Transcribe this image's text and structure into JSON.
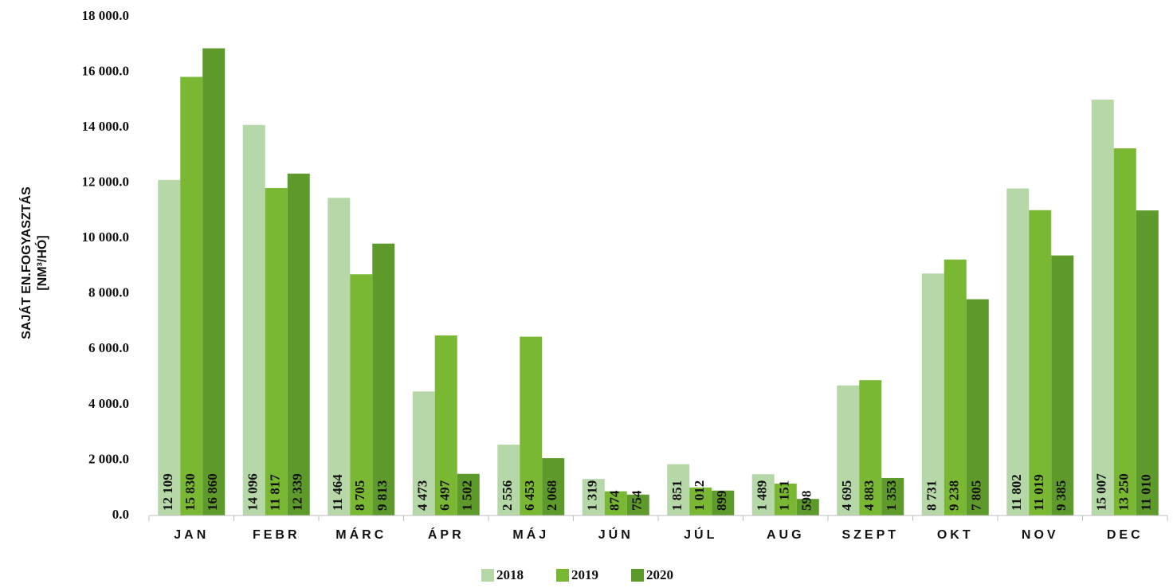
{
  "chart_data": {
    "type": "bar",
    "y_label": [
      "SAJÁT EN.FOGYASZTÁS",
      "[NM³/HÓ]"
    ],
    "categories": [
      "JAN",
      "FEBR",
      "MÁRC",
      "ÁPR",
      "MÁJ",
      "JÚN",
      "JÚL",
      "AUG",
      "SZEPT",
      "OKT",
      "NOV",
      "DEC"
    ],
    "series": [
      {
        "name": "2018",
        "color": "#b6d7a8",
        "values": [
          12109,
          14096,
          11464,
          4473,
          2556,
          1319,
          1851,
          1489,
          4695,
          8731,
          11802,
          15007
        ],
        "value_labels": [
          "12 109",
          "14 096",
          "11 464",
          "4 473",
          "2 556",
          "1 319",
          "1 851",
          "1 489",
          "4 695",
          "8 731",
          "11 802",
          "15 007"
        ]
      },
      {
        "name": "2019",
        "color": "#7ab834",
        "values": [
          15830,
          11817,
          8705,
          6497,
          6453,
          874,
          1012,
          1151,
          4883,
          9238,
          11019,
          13250
        ],
        "value_labels": [
          "15 830",
          "11 817",
          "8 705",
          "6 497",
          "6 453",
          "874",
          "1 012",
          "1 151",
          "4 883",
          "9 238",
          "11 019",
          "13 250"
        ]
      },
      {
        "name": "2020",
        "color": "#5e9a2b",
        "values": [
          16860,
          12339,
          9813,
          1502,
          2068,
          754,
          899,
          598,
          1353,
          7805,
          9385,
          11010
        ],
        "value_labels": [
          "16 860",
          "12 339",
          "9 813",
          "1 502",
          "2 068",
          "754",
          "899",
          "598",
          "1 353",
          "7 805",
          "9 385",
          "11 010"
        ]
      }
    ],
    "ylim": [
      0,
      18000
    ],
    "yticks": [
      {
        "value": 0,
        "label": "0.0"
      },
      {
        "value": 2000,
        "label": "2 000.0"
      },
      {
        "value": 4000,
        "label": "4 000.0"
      },
      {
        "value": 6000,
        "label": "6 000.0"
      },
      {
        "value": 8000,
        "label": "8 000.0"
      },
      {
        "value": 10000,
        "label": "10 000.0"
      },
      {
        "value": 12000,
        "label": "12 000.0"
      },
      {
        "value": 14000,
        "label": "14 000.0"
      },
      {
        "value": 16000,
        "label": "16 000.0"
      },
      {
        "value": 18000,
        "label": "18 000.0"
      }
    ],
    "legend": "bottom"
  }
}
